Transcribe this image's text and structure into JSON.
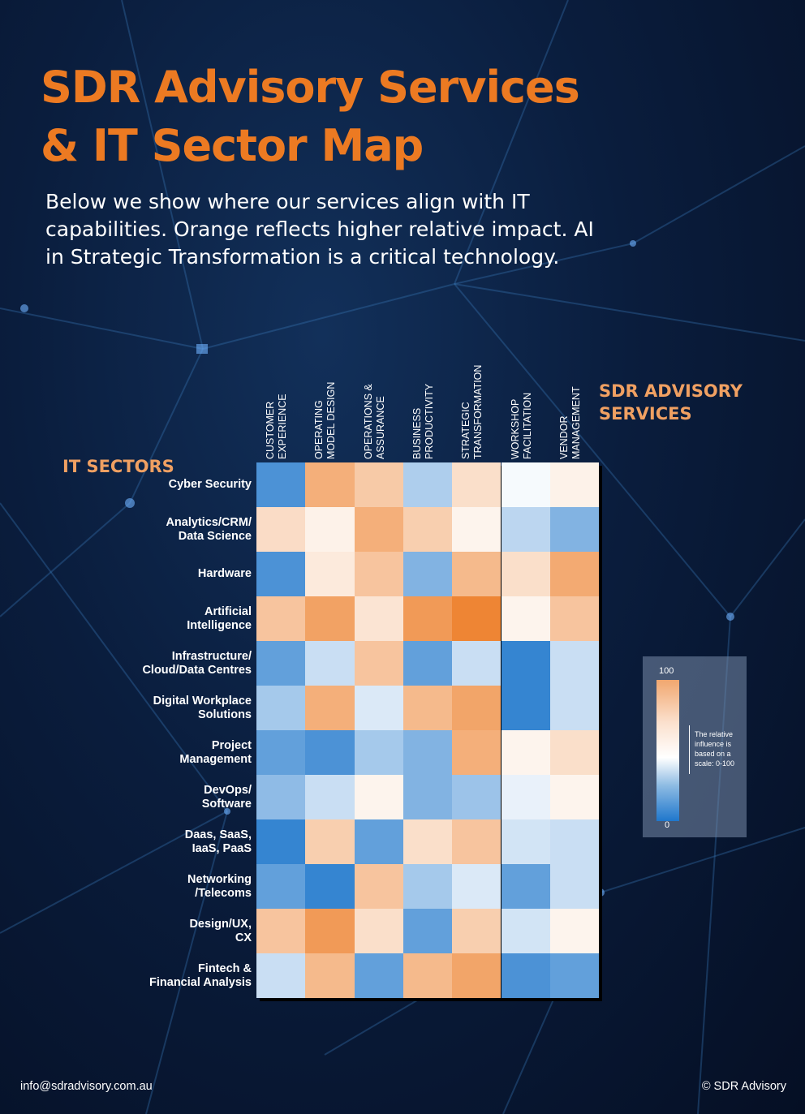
{
  "title": {
    "line1": "SDR Advisory Services",
    "line2": "& IT Sector Map"
  },
  "intro": "Below we show where our services align with IT capabilities. Orange reflects higher relative impact. AI in Strategic Transformation is a critical technology.",
  "labels": {
    "services": "SDR ADVISORY SERVICES",
    "sectors": "IT SECTORS"
  },
  "chart_data": {
    "type": "heatmap",
    "title": "SDR Advisory Services & IT Sector Map",
    "xlabel": "SDR ADVISORY SERVICES",
    "ylabel": "IT SECTORS",
    "columns": [
      "CUSTOMER\nEXPERIENCE",
      "OPERATING\nMODEL DESIGN",
      "OPERATIONS &\nASSURANCE",
      "BUSINESS\nPRODUCTIVITY",
      "STRATEGIC\nTRANSFORMATION",
      "WORKSHOP\nFACILITATION",
      "VENDOR\nMANAGEMENT"
    ],
    "rows": [
      "Cyber Security",
      "Analytics/CRM/\nData Science",
      "Hardware",
      "Artificial\nIntelligence",
      "Infrastructure/\nCloud/Data Centres",
      "Digital Workplace\nSolutions",
      "Project\nManagement",
      "DevOps/\nSoftware",
      "Daas, SaaS,\nIaaS, PaaS",
      "Networking\n/Telecoms",
      "Design/UX,\nCX",
      "Fintech &\nFinancial Analysis"
    ],
    "values": [
      [
        10,
        80,
        70,
        32,
        62,
        48,
        55
      ],
      [
        63,
        55,
        80,
        68,
        54,
        35,
        22
      ],
      [
        10,
        58,
        72,
        22,
        76,
        62,
        82
      ],
      [
        72,
        85,
        60,
        88,
        96,
        54,
        72
      ],
      [
        15,
        38,
        72,
        15,
        38,
        5,
        38
      ],
      [
        30,
        80,
        42,
        76,
        84,
        5,
        38
      ],
      [
        15,
        10,
        30,
        22,
        80,
        54,
        62
      ],
      [
        25,
        38,
        54,
        22,
        28,
        45,
        54
      ],
      [
        5,
        68,
        15,
        62,
        72,
        40,
        38
      ],
      [
        15,
        5,
        72,
        30,
        42,
        15,
        38
      ],
      [
        72,
        88,
        62,
        15,
        68,
        40,
        54
      ],
      [
        38,
        76,
        15,
        76,
        84,
        10,
        15
      ]
    ],
    "scale": {
      "min": 0,
      "max": 100,
      "min_label": "0",
      "max_label": "100",
      "low_color": "#1f77cc",
      "mid_color": "#ffffff",
      "high_color": "#ec7a22",
      "note": "The relative influence is based on a scale: 0-100"
    }
  },
  "footer": {
    "email": "info@sdradvisory.com.au",
    "copyright": "© SDR Advisory"
  }
}
